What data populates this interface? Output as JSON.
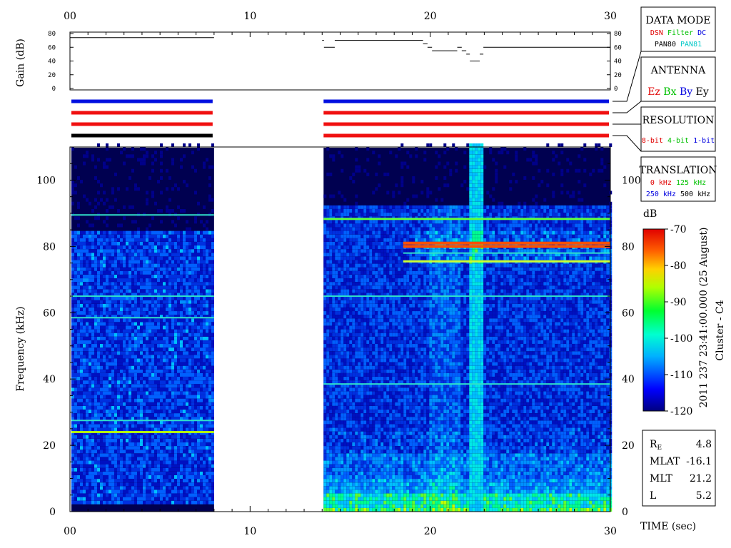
{
  "chart_data": [
    {
      "type": "line",
      "ylabel": "Gain (dB)",
      "x_ticks": [
        "00",
        "10",
        "20",
        "30"
      ],
      "y_ticks": [
        "0",
        "20",
        "40",
        "60",
        "80"
      ],
      "xlim": [
        0,
        30
      ],
      "ylim": [
        0,
        80
      ],
      "series": [
        {
          "segments": [
            [
              [
                0,
                74
              ],
              [
                8,
                74
              ]
            ],
            [
              [
                14,
                70
              ],
              [
                14.1,
                70
              ]
            ],
            [
              [
                14.1,
                60
              ],
              [
                14.7,
                60
              ]
            ],
            [
              [
                14.7,
                70
              ],
              [
                19.6,
                70
              ]
            ],
            [
              [
                19.6,
                65
              ],
              [
                19.85,
                65
              ]
            ],
            [
              [
                19.85,
                60
              ],
              [
                20.1,
                60
              ]
            ],
            [
              [
                20.1,
                55
              ],
              [
                21.5,
                55
              ]
            ],
            [
              [
                21.5,
                60
              ],
              [
                21.75,
                60
              ]
            ],
            [
              [
                21.75,
                55
              ],
              [
                22.0,
                55
              ]
            ],
            [
              [
                22.0,
                50
              ],
              [
                22.2,
                50
              ]
            ],
            [
              [
                22.2,
                40
              ],
              [
                22.75,
                40
              ]
            ],
            [
              [
                22.75,
                50
              ],
              [
                22.95,
                50
              ]
            ],
            [
              [
                22.95,
                60
              ],
              [
                30,
                60
              ]
            ]
          ]
        }
      ]
    },
    {
      "type": "heatmap",
      "xlabel": "TIME (sec)",
      "ylabel": "Frequency (kHz)",
      "x_ticks": [
        "00",
        "10",
        "20",
        "30"
      ],
      "y_ticks": [
        "0",
        "20",
        "40",
        "60",
        "80",
        "100"
      ],
      "xlim": [
        0,
        30
      ],
      "ylim": [
        0,
        110
      ],
      "data_intervals": [
        [
          0,
          8
        ],
        [
          14,
          30
        ]
      ],
      "emission_lines_khz": [
        {
          "f": 24,
          "interval": 0
        },
        {
          "f": 27.5,
          "interval": 0
        },
        {
          "f": 58.5,
          "interval": 0
        },
        {
          "f": 65,
          "interval": 0
        },
        {
          "f": 89.5,
          "interval": 0
        },
        {
          "f": 38.5,
          "interval": 1
        },
        {
          "f": 65,
          "interval": 1
        },
        {
          "f": 78,
          "interval": 1
        },
        {
          "f": 80,
          "interval": 1
        },
        {
          "f": 81,
          "interval": 1
        },
        {
          "f": 75.5,
          "interval": 1
        },
        {
          "f": 88.3,
          "interval": 1
        }
      ],
      "vertical_band_sec": 22.5,
      "colorbar": {
        "label": "dB",
        "ticks": [
          "-70",
          "-80",
          "-90",
          "-100",
          "-110",
          "-120"
        ],
        "range": [
          -120,
          -70
        ]
      }
    }
  ],
  "mode_bars": [
    {
      "color": "#0010e0",
      "intervals": [
        [
          0,
          8
        ],
        [
          14,
          30
        ]
      ]
    },
    {
      "color": "#f01010",
      "intervals": [
        [
          0,
          8
        ],
        [
          14,
          30
        ]
      ]
    },
    {
      "color": "#f01010",
      "intervals": [
        [
          0,
          8
        ],
        [
          14,
          30
        ]
      ]
    },
    {
      "color": "#000000",
      "intervals": [
        [
          0,
          8
        ]
      ]
    },
    {
      "color": "#f01010",
      "intervals": [
        [
          14,
          30
        ]
      ]
    }
  ],
  "legend": {
    "data_mode": {
      "title": "DATA MODE",
      "row1": [
        {
          "t": "DSN",
          "c": "#e00000"
        },
        {
          "t": "Filter",
          "c": "#00c000"
        },
        {
          "t": "DC",
          "c": "#0000e0"
        }
      ],
      "row2": [
        {
          "t": "PAN80",
          "c": "#000000"
        },
        {
          "t": "PAN81",
          "c": "#00c8c8"
        }
      ]
    },
    "antenna": {
      "title": "ANTENNA",
      "row1": [
        {
          "t": "Ez",
          "c": "#e00000"
        },
        {
          "t": "Bx",
          "c": "#00c000"
        },
        {
          "t": "By",
          "c": "#0000e0"
        },
        {
          "t": "Ey",
          "c": "#000000"
        }
      ]
    },
    "resolution": {
      "title": "RESOLUTION",
      "row1": [
        {
          "t": "8-bit",
          "c": "#e00000"
        },
        {
          "t": "4-bit",
          "c": "#00c000"
        },
        {
          "t": "1-bit",
          "c": "#0000e0"
        }
      ]
    },
    "translation": {
      "title": "TRANSLATION",
      "row1": [
        {
          "t": "0 kHz",
          "c": "#e00000"
        },
        {
          "t": "125 kHz",
          "c": "#00c000"
        }
      ],
      "row2": [
        {
          "t": "250 kHz",
          "c": "#0000e0"
        },
        {
          "t": "500 kHz",
          "c": "#000000"
        }
      ]
    }
  },
  "side_title": "2011 237 23:41:00.000 (25 August)",
  "spacecraft": "Cluster - C4",
  "orbit": [
    {
      "label": "R",
      "sub": "E",
      "value": "4.8"
    },
    {
      "label": "MLAT",
      "value": "-16.1"
    },
    {
      "label": "MLT",
      "value": "21.2"
    },
    {
      "label": "L",
      "value": "5.2"
    }
  ]
}
